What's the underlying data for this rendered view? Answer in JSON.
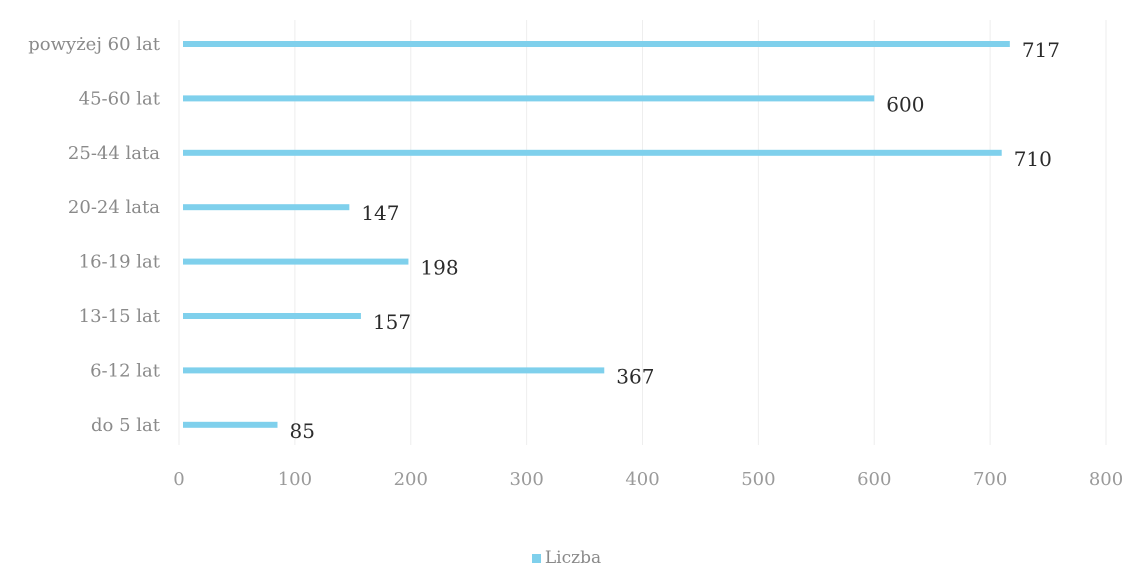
{
  "chart_data": {
    "type": "bar",
    "orientation": "horizontal",
    "categories": [
      "powyżej 60 lat",
      "45-60 lat",
      "25-44 lata",
      "20-24 lata",
      "16-19 lat",
      "13-15 lat",
      "6-12 lat",
      "do 5 lat"
    ],
    "series": [
      {
        "name": "Liczba",
        "values": [
          717,
          600,
          710,
          147,
          198,
          157,
          367,
          85
        ]
      }
    ],
    "xlim": [
      0,
      800
    ],
    "xticks": [
      0,
      100,
      200,
      300,
      400,
      500,
      600,
      700,
      800
    ],
    "bar_color": "#7fd0ec",
    "grid": true,
    "legend_position": "bottom"
  }
}
